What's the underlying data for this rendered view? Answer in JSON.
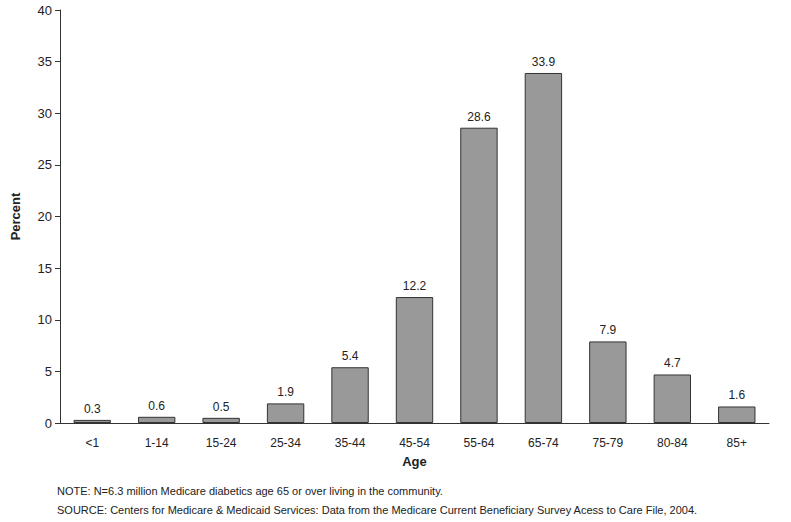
{
  "chart_data": {
    "type": "bar",
    "x_label": "Age",
    "y_label": "Percent",
    "categories": [
      "<1",
      "1-14",
      "15-24",
      "25-34",
      "35-44",
      "45-54",
      "55-64",
      "65-74",
      "75-79",
      "80-84",
      "85+"
    ],
    "values": [
      0.3,
      0.6,
      0.5,
      1.9,
      5.4,
      12.2,
      28.6,
      33.9,
      7.9,
      4.7,
      1.6
    ],
    "color": "#999999",
    "ylim": [
      0,
      40
    ],
    "yticks": [
      0,
      5,
      10,
      15,
      20,
      25,
      30,
      35,
      40
    ],
    "grid": false,
    "data_labels": true,
    "annotations": [
      "NOTE: N=6.3 million Medicare diabetics age 65 or over living in the community.",
      "SOURCE: Centers for Medicare & Medicaid Services: Data from the Medicare Current Beneficiary Survey Acess to Care File, 2004."
    ]
  }
}
